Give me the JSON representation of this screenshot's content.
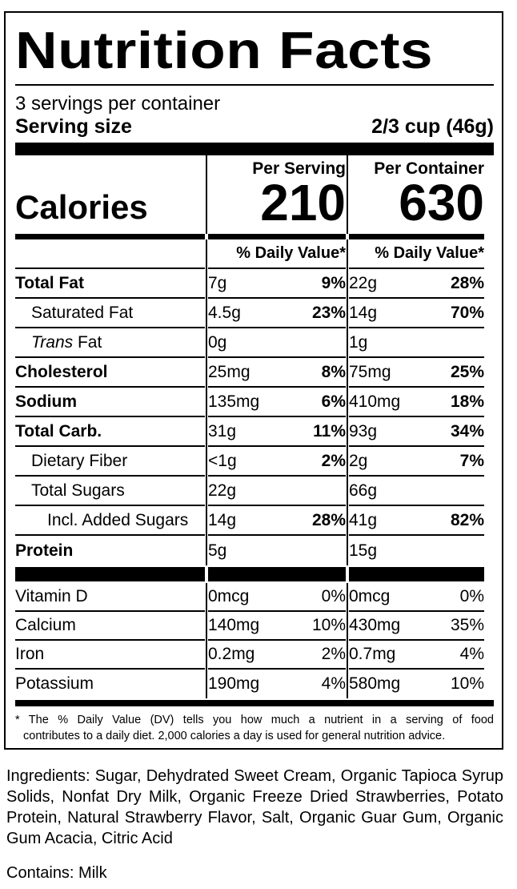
{
  "title": "Nutrition Facts",
  "servings_per_container": "3 servings per container",
  "serving_size": {
    "label": "Serving size",
    "value": "2/3 cup (46g)"
  },
  "calories": {
    "label": "Calories",
    "per_serving_header": "Per Serving",
    "per_container_header": "Per Container",
    "per_serving": "210",
    "per_container": "630"
  },
  "dv_header": "% Daily Value*",
  "nutrients": [
    {
      "name": "Total Fat",
      "ps_amount": "7g",
      "ps_dv": "9%",
      "pc_amount": "22g",
      "pc_dv": "28%"
    },
    {
      "name": "Saturated Fat",
      "ps_amount": "4.5g",
      "ps_dv": "23%",
      "pc_amount": "14g",
      "pc_dv": "70%"
    },
    {
      "name_italic": "Trans",
      "name_rest": " Fat",
      "ps_amount": "0g",
      "ps_dv": "",
      "pc_amount": "1g",
      "pc_dv": ""
    },
    {
      "name": "Cholesterol",
      "ps_amount": "25mg",
      "ps_dv": "8%",
      "pc_amount": "75mg",
      "pc_dv": "25%"
    },
    {
      "name": "Sodium",
      "ps_amount": "135mg",
      "ps_dv": "6%",
      "pc_amount": "410mg",
      "pc_dv": "18%"
    },
    {
      "name": "Total Carb.",
      "ps_amount": "31g",
      "ps_dv": "11%",
      "pc_amount": "93g",
      "pc_dv": "34%"
    },
    {
      "name": "Dietary Fiber",
      "ps_amount": "<1g",
      "ps_dv": "2%",
      "pc_amount": "2g",
      "pc_dv": "7%"
    },
    {
      "name": "Total Sugars",
      "ps_amount": "22g",
      "ps_dv": "",
      "pc_amount": "66g",
      "pc_dv": ""
    },
    {
      "name": "Incl. Added Sugars",
      "ps_amount": "14g",
      "ps_dv": "28%",
      "pc_amount": "41g",
      "pc_dv": "82%"
    },
    {
      "name": "Protein",
      "ps_amount": "5g",
      "ps_dv": "",
      "pc_amount": "15g",
      "pc_dv": ""
    }
  ],
  "vitamins": [
    {
      "name": "Vitamin D",
      "ps_amount": "0mcg",
      "ps_dv": "0%",
      "pc_amount": "0mcg",
      "pc_dv": "0%"
    },
    {
      "name": "Calcium",
      "ps_amount": "140mg",
      "ps_dv": "10%",
      "pc_amount": "430mg",
      "pc_dv": "35%"
    },
    {
      "name": "Iron",
      "ps_amount": "0.2mg",
      "ps_dv": "2%",
      "pc_amount": "0.7mg",
      "pc_dv": "4%"
    },
    {
      "name": "Potassium",
      "ps_amount": "190mg",
      "ps_dv": "4%",
      "pc_amount": "580mg",
      "pc_dv": "10%"
    }
  ],
  "footnote_line1": "* The % Daily Value (DV) tells you how much a nutrient in a serving of food",
  "footnote_line2": "contributes to a daily diet. 2,000 calories a day is used for general nutrition advice.",
  "ingredients": "Ingredients: Sugar, Dehydrated Sweet Cream, Organic Tapioca Syrup Solids, Nonfat Dry Milk, Organic Freeze Dried Strawberries, Potato Protein, Natural Strawberry Flavor, Salt, Organic Guar Gum, Organic Gum Acacia, Citric Acid",
  "contains": "Contains: Milk"
}
